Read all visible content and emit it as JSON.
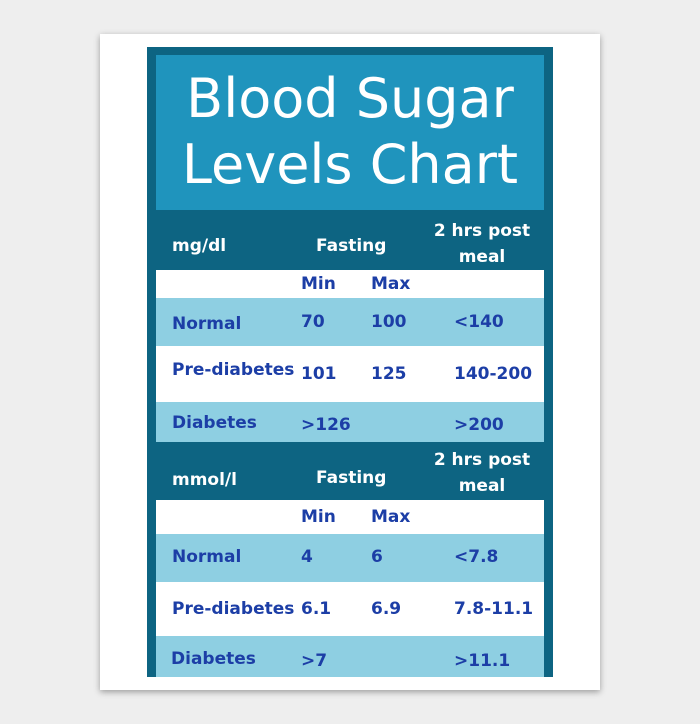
{
  "title": {
    "line1": "Blood Sugar",
    "line2": "Levels Chart"
  },
  "sections": [
    {
      "unit": "mg/dl",
      "fasting_label": "Fasting",
      "post_meal_label": "2 hrs post meal",
      "min_label": "Min",
      "max_label": "Max",
      "rows": [
        {
          "label": "Normal",
          "min": "70",
          "max": "100",
          "post": "<140"
        },
        {
          "label": "Pre-diabetes",
          "min": "101",
          "max": "125",
          "post": "140-200"
        },
        {
          "label": "Diabetes",
          "min": ">126",
          "max": "",
          "post": ">200"
        }
      ]
    },
    {
      "unit": "mmol/l",
      "fasting_label": "Fasting",
      "post_meal_label": "2 hrs post meal",
      "min_label": "Min",
      "max_label": "Max",
      "rows": [
        {
          "label": "Normal",
          "min": "4",
          "max": "6",
          "post": "<7.8"
        },
        {
          "label": "Pre-diabetes",
          "min": "6.1",
          "max": "6.9",
          "post": "7.8-11.1"
        },
        {
          "label": "Diabetes",
          "min": ">7",
          "max": "",
          "post": ">11.1"
        }
      ]
    }
  ]
}
